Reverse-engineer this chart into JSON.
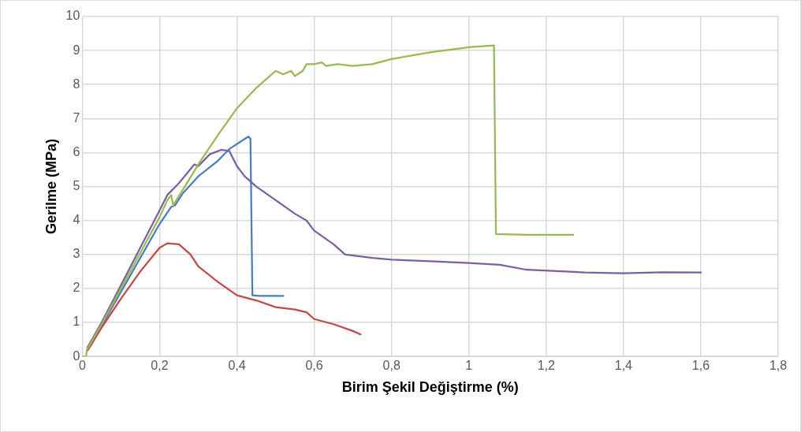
{
  "chart_data": {
    "type": "line",
    "xlabel": "Birim Şekil Değiştirme (%)",
    "ylabel": "Gerilme (MPa)",
    "xlim": [
      0,
      1.8
    ],
    "xticks": [
      0,
      {
        "value": 0.2,
        "label": "0,2"
      },
      {
        "value": 0.4,
        "label": "0,4"
      },
      {
        "value": 0.6,
        "label": "0,6"
      },
      {
        "value": 0.8,
        "label": "0,8"
      },
      1,
      {
        "value": 1.2,
        "label": "1,2"
      },
      {
        "value": 1.4,
        "label": "1,4"
      },
      {
        "value": 1.6,
        "label": "1,6"
      },
      {
        "value": 1.8,
        "label": "1,8"
      }
    ],
    "ylim": [
      0,
      10
    ],
    "yticks": [
      0,
      1,
      2,
      3,
      4,
      5,
      6,
      7,
      8,
      9,
      10
    ],
    "grid": true,
    "legend": false,
    "marker": "none",
    "line_style": "solid",
    "series": [
      {
        "color": "#4a7ebb",
        "x": [
          0.013,
          0.05,
          0.1,
          0.15,
          0.2,
          0.23,
          0.24,
          0.26,
          0.3,
          0.35,
          0.38,
          0.42,
          0.43,
          0.435,
          0.44,
          0.46,
          0.52
        ],
        "values": [
          0.22,
          0.9,
          1.9,
          2.9,
          3.9,
          4.4,
          4.45,
          4.8,
          5.3,
          5.75,
          6.1,
          6.4,
          6.47,
          6.4,
          1.8,
          1.78,
          1.78
        ]
      },
      {
        "color": "#be4b48",
        "x": [
          0.014,
          0.05,
          0.1,
          0.15,
          0.2,
          0.22,
          0.25,
          0.28,
          0.3,
          0.35,
          0.4,
          0.45,
          0.5,
          0.55,
          0.58,
          0.6,
          0.65,
          0.7,
          0.72
        ],
        "values": [
          0.18,
          0.85,
          1.7,
          2.5,
          3.2,
          3.33,
          3.3,
          3.0,
          2.65,
          2.2,
          1.8,
          1.65,
          1.45,
          1.38,
          1.3,
          1.1,
          0.95,
          0.75,
          0.65
        ]
      },
      {
        "color": "#7d5fa0",
        "x": [
          0.013,
          0.05,
          0.1,
          0.15,
          0.2,
          0.22,
          0.25,
          0.29,
          0.3,
          0.33,
          0.36,
          0.38,
          0.4,
          0.42,
          0.45,
          0.5,
          0.55,
          0.58,
          0.6,
          0.65,
          0.68,
          0.75,
          0.8,
          0.9,
          1.0,
          1.08,
          1.15,
          1.25,
          1.3,
          1.4,
          1.5,
          1.6
        ],
        "values": [
          0.26,
          1.0,
          2.1,
          3.2,
          4.3,
          4.75,
          5.1,
          5.65,
          5.6,
          5.95,
          6.08,
          6.05,
          5.6,
          5.3,
          5.0,
          4.6,
          4.2,
          4.0,
          3.7,
          3.3,
          3.0,
          2.9,
          2.85,
          2.8,
          2.75,
          2.7,
          2.55,
          2.5,
          2.47,
          2.45,
          2.48,
          2.47
        ]
      },
      {
        "color": "#98b954",
        "x": [
          0,
          0.01,
          0.012,
          0.05,
          0.1,
          0.15,
          0.2,
          0.22,
          0.23,
          0.235,
          0.26,
          0.3,
          0.35,
          0.4,
          0.45,
          0.48,
          0.5,
          0.52,
          0.54,
          0.55,
          0.57,
          0.58,
          0.6,
          0.62,
          0.63,
          0.66,
          0.7,
          0.75,
          0.8,
          0.9,
          1.0,
          1.065,
          1.07,
          1.15,
          1.27
        ],
        "values": [
          0,
          0,
          0.2,
          0.95,
          2.0,
          3.05,
          4.1,
          4.6,
          4.75,
          4.45,
          4.9,
          5.65,
          6.5,
          7.3,
          7.9,
          8.2,
          8.4,
          8.3,
          8.4,
          8.25,
          8.4,
          8.6,
          8.6,
          8.65,
          8.55,
          8.6,
          8.55,
          8.6,
          8.75,
          8.95,
          9.1,
          9.15,
          3.6,
          3.58,
          3.58
        ]
      }
    ]
  }
}
